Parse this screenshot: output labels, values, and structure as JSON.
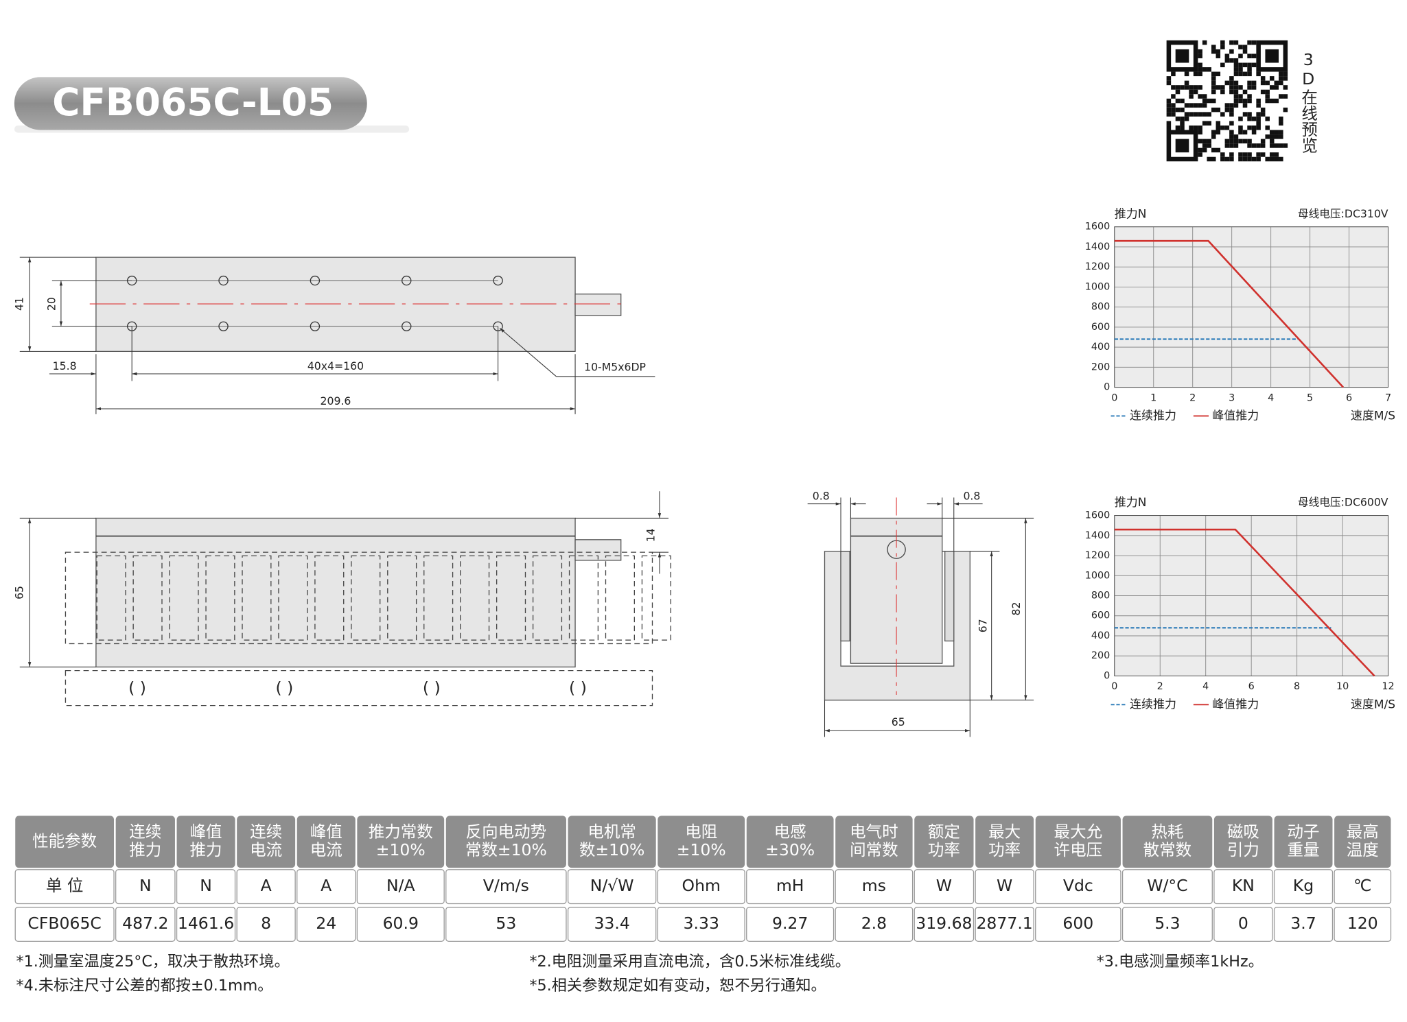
{
  "header": {
    "title": "CFB065C-L05",
    "qr_label": "3D在线预览"
  },
  "drawings": {
    "top_view": {
      "height": "41",
      "hole_spacing": "20",
      "offset": "15.8",
      "pitch": "40x4=160",
      "holes": "10-M5x6DP",
      "length": "209.6"
    },
    "front_view": {
      "height": "65",
      "magnet_gap": "14"
    },
    "side_view": {
      "left_gap": "0.8",
      "right_gap": "0.8",
      "inner_height": "67",
      "total_height": "82",
      "width": "65"
    }
  },
  "chart_data": [
    {
      "type": "line",
      "ylabel": "推力N",
      "subtitle": "母线电压:DC310V",
      "xlabel": "速度M/S",
      "xlim": [
        0,
        7
      ],
      "xticks": [
        0,
        1,
        2,
        3,
        4,
        5,
        6,
        7
      ],
      "ylim": [
        0,
        1600
      ],
      "yticks": [
        0,
        200,
        400,
        600,
        800,
        1000,
        1200,
        1400,
        1600
      ],
      "grid": true,
      "series": [
        {
          "name": "连续推力",
          "color": "#2a7ab8",
          "style": "dashed",
          "x": [
            0,
            4.7
          ],
          "values": [
            480,
            480
          ]
        },
        {
          "name": "峰值推力",
          "color": "#d0312d",
          "style": "solid",
          "x": [
            0,
            2.4,
            5.85
          ],
          "values": [
            1460,
            1460,
            0
          ]
        }
      ]
    },
    {
      "type": "line",
      "ylabel": "推力N",
      "subtitle": "母线电压:DC600V",
      "xlabel": "速度M/S",
      "xlim": [
        0,
        12
      ],
      "xticks": [
        0,
        2,
        4,
        6,
        8,
        10,
        12
      ],
      "ylim": [
        0,
        1600
      ],
      "yticks": [
        0,
        200,
        400,
        600,
        800,
        1000,
        1200,
        1400,
        1600
      ],
      "grid": true,
      "series": [
        {
          "name": "连续推力",
          "color": "#2a7ab8",
          "style": "dashed",
          "x": [
            0,
            9.5
          ],
          "values": [
            480,
            480
          ]
        },
        {
          "name": "峰值推力",
          "color": "#d0312d",
          "style": "solid",
          "x": [
            0,
            5.3,
            11.4
          ],
          "values": [
            1460,
            1460,
            0
          ]
        }
      ]
    }
  ],
  "table": {
    "header": [
      [
        "性能参数"
      ],
      [
        "连续",
        "推力"
      ],
      [
        "峰值",
        "推力"
      ],
      [
        "连续",
        "电流"
      ],
      [
        "峰值",
        "电流"
      ],
      [
        "推力常数",
        "±10%"
      ],
      [
        "反向电动势",
        "常数±10%"
      ],
      [
        "电机常",
        "数±10%"
      ],
      [
        "电阻",
        "±10%"
      ],
      [
        "电感",
        "±30%"
      ],
      [
        "电气时",
        "间常数"
      ],
      [
        "额定",
        "功率"
      ],
      [
        "最大",
        "功率"
      ],
      [
        "最大允",
        "许电压"
      ],
      [
        "热耗",
        "散常数"
      ],
      [
        "磁吸",
        "引力"
      ],
      [
        "动子",
        "重量"
      ],
      [
        "最高",
        "温度"
      ]
    ],
    "units": [
      "单 位",
      "N",
      "N",
      "A",
      "A",
      "N/A",
      "V/m/s",
      "N/√W",
      "Ohm",
      "mH",
      "ms",
      "W",
      "W",
      "Vdc",
      "W/°C",
      "KN",
      "Kg",
      "℃"
    ],
    "rows": [
      [
        "CFB065C",
        "487.2",
        "1461.6",
        "8",
        "24",
        "60.9",
        "53",
        "33.4",
        "3.33",
        "9.27",
        "2.8",
        "319.68",
        "2877.1",
        "600",
        "5.3",
        "0",
        "3.7",
        "120"
      ]
    ]
  },
  "notes": [
    "*1.测量室温度25°C，取决于散热环境。",
    "*2.电阻测量采用直流电流，含0.5米标准线缆。",
    "*3.电感测量频率1kHz。",
    "*4.未标注尺寸公差的都按±0.1mm。",
    "*5.相关参数规定如有变动，恕不另行通知。"
  ]
}
